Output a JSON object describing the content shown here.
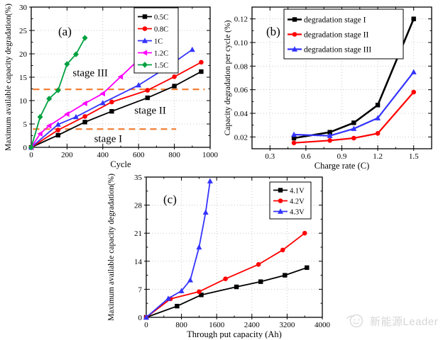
{
  "watermark": {
    "text": "新能源Leader",
    "color": "#d6d6d6"
  },
  "colors": {
    "black": "#000000",
    "red": "#ff0000",
    "blue": "#3333ff",
    "magenta": "#ff00ff",
    "green": "#00a040",
    "stage_line_orange": "#f08038",
    "grid": "#c8c8c8",
    "frame": "#000000"
  },
  "chart_data": [
    {
      "id": "a",
      "type": "line",
      "panel_label": "(a)",
      "xlabel": "Cycle",
      "ylabel": "Maximum available capacity degradation(%)",
      "xlim": [
        0,
        1000
      ],
      "ylim": [
        0,
        30
      ],
      "xticks": [
        0,
        200,
        400,
        600,
        800,
        1000
      ],
      "xtick_labels": [
        "0",
        "200",
        "400",
        "600",
        "800",
        "1000"
      ],
      "yticks": [
        0,
        5,
        10,
        15,
        20,
        25,
        30
      ],
      "ytick_labels": [
        "0",
        "5",
        "10",
        "15",
        "20",
        "25",
        "30"
      ],
      "x_minor": 100,
      "y_minor": 2.5,
      "grid": true,
      "legend_position": "top-right-inside",
      "series": [
        {
          "name": "0.5C",
          "color": "#000000",
          "marker": "square",
          "points": [
            [
              0,
              0
            ],
            [
              150,
              2.6
            ],
            [
              300,
              5.4
            ],
            [
              450,
              7.7
            ],
            [
              650,
              10.6
            ],
            [
              800,
              13.1
            ],
            [
              950,
              16.2
            ]
          ]
        },
        {
          "name": "0.8C",
          "color": "#ff0000",
          "marker": "circle",
          "points": [
            [
              0,
              0
            ],
            [
              150,
              3.7
            ],
            [
              300,
              6.6
            ],
            [
              450,
              9.7
            ],
            [
              650,
              12.2
            ],
            [
              800,
              15.1
            ],
            [
              950,
              18.2
            ]
          ]
        },
        {
          "name": "1C",
          "color": "#3333ff",
          "marker": "triangle-up",
          "points": [
            [
              0,
              0
            ],
            [
              150,
              4.9
            ],
            [
              250,
              6.5
            ],
            [
              400,
              9.5
            ],
            [
              600,
              13.3
            ],
            [
              750,
              16.9
            ],
            [
              900,
              20.9
            ]
          ]
        },
        {
          "name": "1.2C",
          "color": "#ff00ff",
          "marker": "triangle-left",
          "points": [
            [
              0,
              0
            ],
            [
              50,
              2.9
            ],
            [
              100,
              4.6
            ],
            [
              200,
              7.1
            ],
            [
              300,
              9.4
            ],
            [
              400,
              11.5
            ],
            [
              500,
              15.1
            ],
            [
              600,
              18.7
            ]
          ]
        },
        {
          "name": "1.5C",
          "color": "#00a040",
          "marker": "diamond",
          "points": [
            [
              0,
              0
            ],
            [
              50,
              6.5
            ],
            [
              100,
              10.4
            ],
            [
              150,
              12.2
            ],
            [
              200,
              17.8
            ],
            [
              250,
              19.9
            ],
            [
              300,
              23.4
            ]
          ]
        }
      ],
      "annotations": {
        "hlines": [
          {
            "y": 12.4,
            "x0": 10,
            "x1": 970,
            "color": "#f08038"
          },
          {
            "y": 3.9,
            "x0": 10,
            "x1": 810,
            "color": "#f08038"
          }
        ],
        "texts": [
          {
            "x": 330,
            "y": 15.2,
            "label": "stage III"
          },
          {
            "x": 665,
            "y": 7.2,
            "label": "stage II"
          },
          {
            "x": 430,
            "y": 1.1,
            "label": "stage I"
          }
        ]
      }
    },
    {
      "id": "b",
      "type": "line",
      "panel_label": "(b)",
      "xlabel": "Charge rate (C)",
      "ylabel": "Capacity degradation per cycle (%)",
      "xlim": [
        0.15,
        1.65
      ],
      "ylim": [
        0.01,
        0.13
      ],
      "xticks": [
        0.3,
        0.6,
        0.9,
        1.2,
        1.5
      ],
      "xtick_labels": [
        "0.3",
        "0.6",
        "0.9",
        "1.2",
        "1.5"
      ],
      "yticks": [
        0.02,
        0.04,
        0.06,
        0.08,
        0.1,
        0.12
      ],
      "ytick_labels": [
        "0.02",
        "0.04",
        "0.06",
        "0.08",
        "0.10",
        "0.12"
      ],
      "x_minor": 0.15,
      "y_minor": 0.01,
      "grid": true,
      "legend_position": "top-center-inside",
      "series": [
        {
          "name": "degradation stage I",
          "color": "#000000",
          "marker": "square",
          "lw": 2.6,
          "points": [
            [
              0.5,
              0.019
            ],
            [
              0.8,
              0.024
            ],
            [
              1.0,
              0.032
            ],
            [
              1.2,
              0.047
            ],
            [
              1.5,
              0.12
            ]
          ]
        },
        {
          "name": "degradation stage II",
          "color": "#ff0000",
          "marker": "circle",
          "lw": 2.2,
          "points": [
            [
              0.5,
              0.015
            ],
            [
              0.8,
              0.017
            ],
            [
              1.0,
              0.019
            ],
            [
              1.2,
              0.023
            ],
            [
              1.5,
              0.058
            ]
          ]
        },
        {
          "name": "degradation stage III",
          "color": "#3333ff",
          "marker": "triangle-up",
          "lw": 2.2,
          "points": [
            [
              0.5,
              0.022
            ],
            [
              0.8,
              0.021
            ],
            [
              1.0,
              0.027
            ],
            [
              1.2,
              0.036
            ],
            [
              1.5,
              0.075
            ]
          ]
        }
      ]
    },
    {
      "id": "c",
      "type": "line",
      "panel_label": "(c)",
      "xlabel": "Through put capacity (Ah)",
      "ylabel": "Maximum available capacity degradation(%)",
      "xlim": [
        0,
        4000
      ],
      "ylim": [
        0,
        35
      ],
      "xticks": [
        0,
        800,
        1600,
        2400,
        3200,
        4000
      ],
      "xtick_labels": [
        "0",
        "800",
        "1600",
        "2400",
        "3200",
        "4000"
      ],
      "yticks": [
        0,
        7,
        14,
        21,
        28,
        35
      ],
      "ytick_labels": [
        "0",
        "7",
        "14",
        "21",
        "28",
        "35"
      ],
      "x_minor": 400,
      "y_minor": 3.5,
      "grid": true,
      "legend_position": "top-right-inside",
      "series": [
        {
          "name": "4.1V",
          "color": "#000000",
          "marker": "square",
          "points": [
            [
              0,
              0
            ],
            [
              700,
              2.8
            ],
            [
              1250,
              5.6
            ],
            [
              2050,
              7.6
            ],
            [
              2600,
              8.9
            ],
            [
              3150,
              10.5
            ],
            [
              3650,
              12.4
            ]
          ]
        },
        {
          "name": "4.2V",
          "color": "#ff0000",
          "marker": "circle",
          "points": [
            [
              0,
              0
            ],
            [
              550,
              4.6
            ],
            [
              1200,
              6.4
            ],
            [
              1800,
              9.6
            ],
            [
              2550,
              13.2
            ],
            [
              3100,
              16.8
            ],
            [
              3600,
              21.0
            ]
          ]
        },
        {
          "name": "4.3V",
          "color": "#3333ff",
          "marker": "triangle-up",
          "points": [
            [
              0,
              0
            ],
            [
              500,
              4.7
            ],
            [
              800,
              6.6
            ],
            [
              1000,
              9.3
            ],
            [
              1200,
              17.5
            ],
            [
              1350,
              26.2
            ],
            [
              1450,
              34.0
            ]
          ]
        }
      ]
    }
  ]
}
